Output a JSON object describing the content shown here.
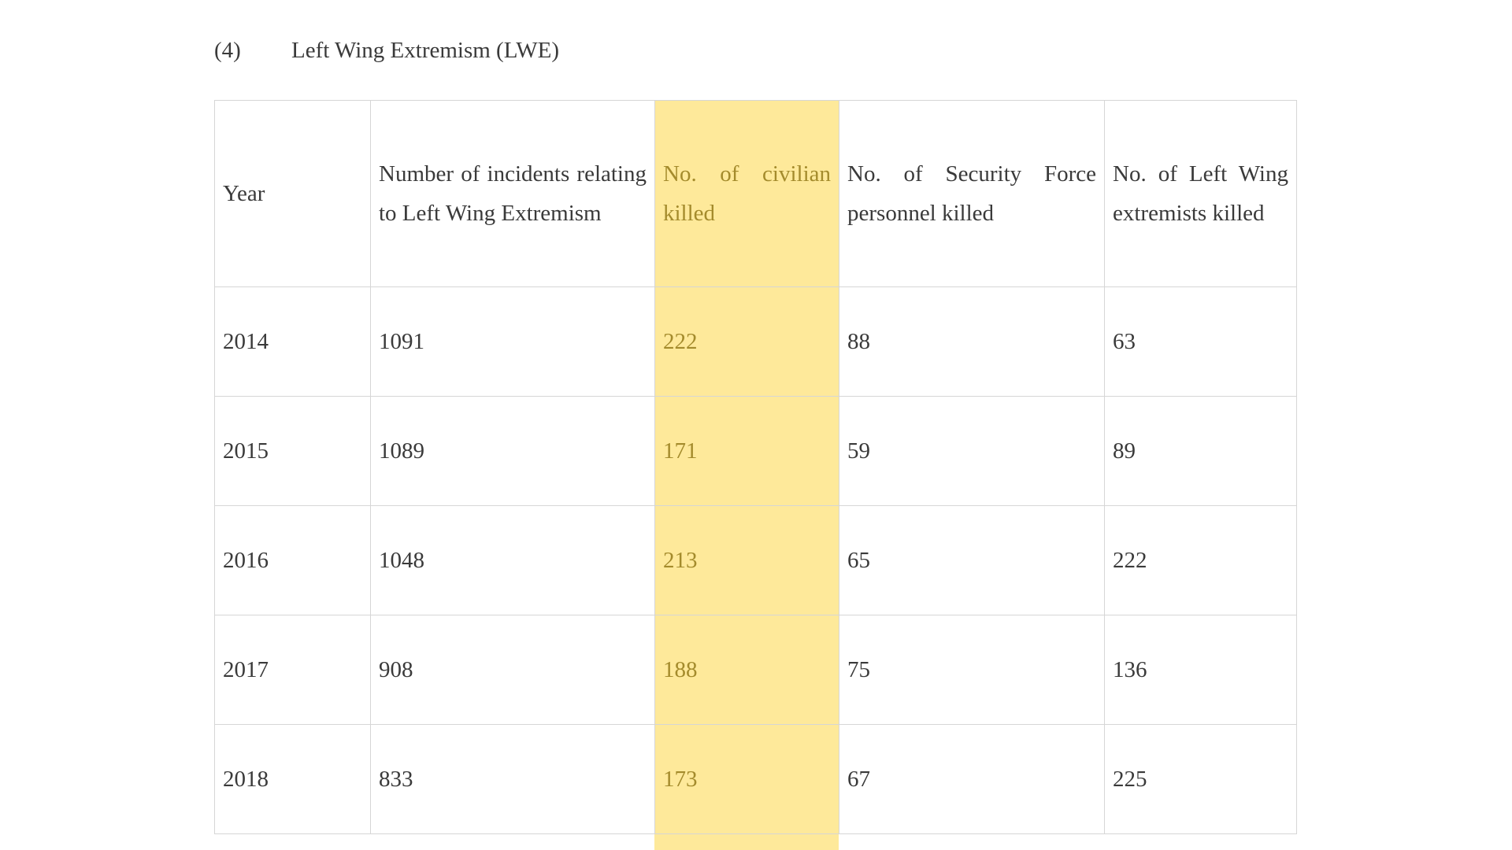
{
  "section": {
    "number": "(4)",
    "title": "Left Wing Extremism (LWE)"
  },
  "highlight_color": "#fee99a",
  "table": {
    "headers": [
      "Year",
      "Number of incidents relating to Left Wing Extremism",
      "No. of civilian killed",
      "No. of Security Force personnel killed",
      "No. of Left Wing extremists killed"
    ],
    "rows": [
      [
        "2014",
        "1091",
        "222",
        "88",
        "63"
      ],
      [
        "2015",
        "1089",
        "171",
        "59",
        "89"
      ],
      [
        "2016",
        "1048",
        "213",
        "65",
        "222"
      ],
      [
        "2017",
        "908",
        "188",
        "75",
        "136"
      ],
      [
        "2018",
        "833",
        "173",
        "67",
        "225"
      ]
    ]
  }
}
